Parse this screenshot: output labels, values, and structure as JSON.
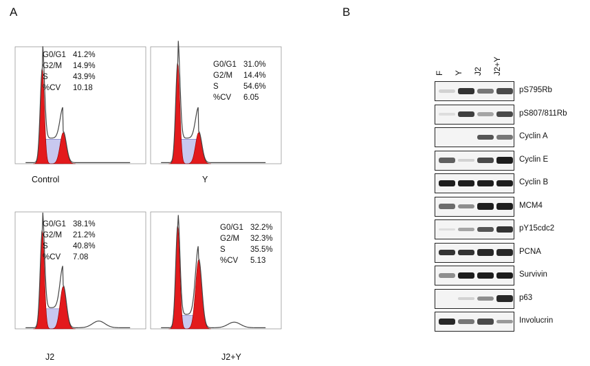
{
  "panel_a": {
    "letter": "A",
    "histograms": [
      {
        "id": "control",
        "label": "Control",
        "stats": [
          [
            "G0/G1",
            "41.2%"
          ],
          [
            "G2/M",
            "14.9%"
          ],
          [
            "S",
            "43.9%"
          ],
          [
            "%CV",
            "10.18"
          ]
        ]
      },
      {
        "id": "y",
        "label": "Y",
        "stats": [
          [
            "G0/G1",
            "31.0%"
          ],
          [
            "G2/M",
            "14.4%"
          ],
          [
            "S",
            "54.6%"
          ],
          [
            "%CV",
            "6.05"
          ]
        ]
      },
      {
        "id": "j2",
        "label": "J2",
        "stats": [
          [
            "G0/G1",
            "38.1%"
          ],
          [
            "G2/M",
            "21.2%"
          ],
          [
            "S",
            "40.8%"
          ],
          [
            "%CV",
            "7.08"
          ]
        ]
      },
      {
        "id": "j2y",
        "label": "J2+Y",
        "stats": [
          [
            "G0/G1",
            "32.2%"
          ],
          [
            "G2/M",
            "32.3%"
          ],
          [
            "S",
            "35.5%"
          ],
          [
            "%CV",
            "5.13"
          ]
        ]
      }
    ]
  },
  "panel_b": {
    "letter": "B",
    "lanes": [
      "F",
      "Y",
      "J2",
      "J2+Y"
    ],
    "blots": [
      {
        "label": "pS795Rb",
        "intensity": [
          0.15,
          0.85,
          0.55,
          0.75
        ]
      },
      {
        "label": "pS807/811Rb",
        "intensity": [
          0.1,
          0.8,
          0.35,
          0.75
        ]
      },
      {
        "label": "Cyclin A",
        "intensity": [
          0,
          0,
          0.7,
          0.55
        ]
      },
      {
        "label": "Cyclin E",
        "intensity": [
          0.65,
          0.15,
          0.75,
          0.95
        ]
      },
      {
        "label": "Cyclin B",
        "intensity": [
          0.95,
          0.95,
          0.95,
          0.95
        ]
      },
      {
        "label": "MCM4",
        "intensity": [
          0.6,
          0.45,
          0.95,
          0.95
        ]
      },
      {
        "label": "pY15cdc2",
        "intensity": [
          0.1,
          0.35,
          0.7,
          0.85
        ]
      },
      {
        "label": "PCNA",
        "intensity": [
          0.85,
          0.85,
          0.9,
          0.9
        ]
      },
      {
        "label": "Survivin",
        "intensity": [
          0.45,
          0.95,
          0.95,
          0.95
        ]
      },
      {
        "label": "p63",
        "intensity": [
          0,
          0.15,
          0.45,
          0.9
        ]
      },
      {
        "label": "Involucrin",
        "intensity": [
          0.9,
          0.55,
          0.75,
          0.4
        ]
      }
    ],
    "colors": {
      "blot_bg": "#f4f4f4",
      "band": "#111111"
    }
  },
  "colors": {
    "g1_fill": "#e31a1c",
    "s_fill": "#c8c8ef",
    "outline": "#444444"
  }
}
